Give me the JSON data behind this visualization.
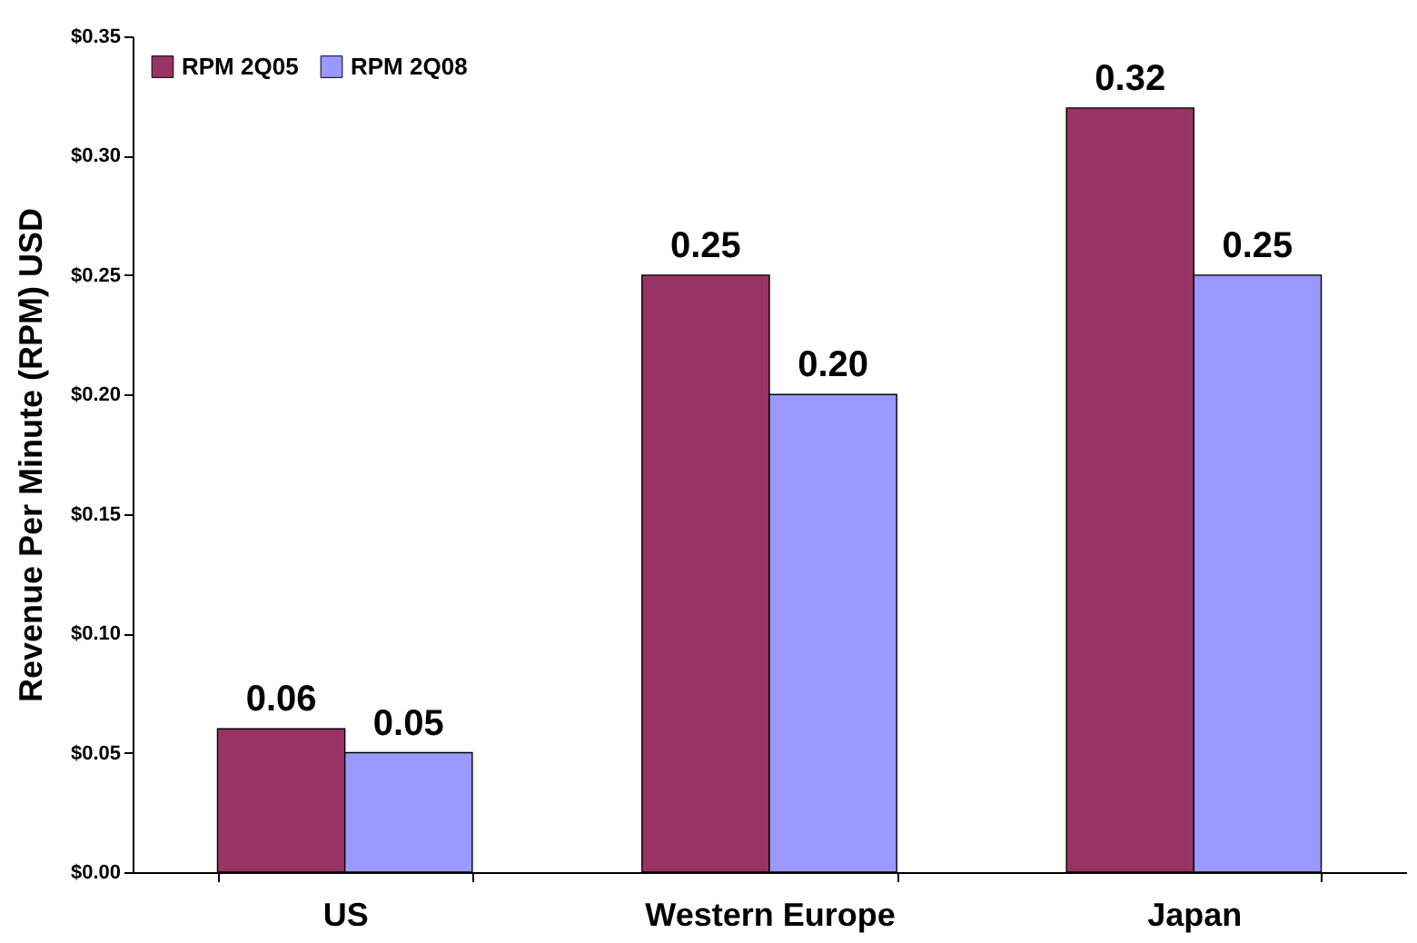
{
  "chart_data": {
    "type": "bar",
    "ylabel": "Revenue Per Minute (RPM) USD",
    "categories": [
      "US",
      "Western Europe",
      "Japan"
    ],
    "series": [
      {
        "name": "RPM 2Q05",
        "color": "#993366",
        "values": [
          0.06,
          0.25,
          0.32
        ],
        "value_labels": [
          "0.06",
          "0.25",
          "0.32"
        ]
      },
      {
        "name": "RPM 2Q08",
        "color": "#9999ff",
        "values": [
          0.05,
          0.2,
          0.25
        ],
        "value_labels": [
          "0.05",
          "0.20",
          "0.25"
        ]
      }
    ],
    "ylim": [
      0,
      0.35
    ],
    "yticks": [
      {
        "value": 0,
        "label": "$0.00"
      },
      {
        "value": 0.05,
        "label": "$0.05"
      },
      {
        "value": 0.1,
        "label": "$0.10"
      },
      {
        "value": 0.15,
        "label": "$0.15"
      },
      {
        "value": 0.2,
        "label": "$0.20"
      },
      {
        "value": 0.25,
        "label": "$0.25"
      },
      {
        "value": 0.3,
        "label": "$0.30"
      },
      {
        "value": 0.35,
        "label": "$0.35"
      }
    ],
    "grid": false,
    "legend": "top left"
  }
}
